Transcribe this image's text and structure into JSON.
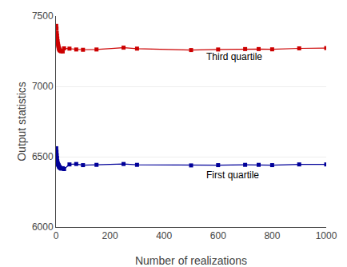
{
  "chart_data": {
    "type": "line",
    "xlabel": "Number of realizations",
    "ylabel": "Output statistics",
    "x": [
      1,
      2,
      3,
      4,
      5,
      6,
      7,
      8,
      9,
      10,
      11,
      12,
      13,
      15,
      17,
      20,
      25,
      30,
      50,
      75,
      100,
      150,
      250,
      300,
      500,
      600,
      700,
      750,
      800,
      900,
      1000
    ],
    "series": [
      {
        "color": "#cc0000",
        "marker": "square",
        "line_style": "solid",
        "values": [
          7430,
          7410,
          7380,
          7360,
          7340,
          7320,
          7305,
          7295,
          7285,
          7275,
          7268,
          7265,
          7258,
          7255,
          7252,
          7249,
          7248,
          7270,
          7268,
          7262,
          7260,
          7262,
          7275,
          7268,
          7258,
          7262,
          7265,
          7265,
          7263,
          7270,
          7272
        ]
      },
      {
        "color": "#000099",
        "marker": "square",
        "line_style": "solid",
        "values": [
          6560,
          6535,
          6510,
          6490,
          6468,
          6455,
          6448,
          6445,
          6440,
          6437,
          6432,
          6428,
          6425,
          6422,
          6418,
          6415,
          6418,
          6412,
          6445,
          6448,
          6440,
          6442,
          6448,
          6442,
          6438,
          6440,
          6442,
          6442,
          6440,
          6445,
          6445
        ]
      }
    ],
    "annotations": [
      {
        "text": "Third quartile",
        "x": 550,
        "y": 7210
      },
      {
        "text": "First quartile",
        "x": 550,
        "y": 6370
      }
    ],
    "xlim": [
      0,
      1000
    ],
    "xticks": [
      0,
      200,
      400,
      600,
      800,
      1000
    ],
    "ylim": [
      6000,
      7500
    ],
    "yticks": [
      6000,
      6500,
      7000,
      7500
    ],
    "grid": "y"
  }
}
